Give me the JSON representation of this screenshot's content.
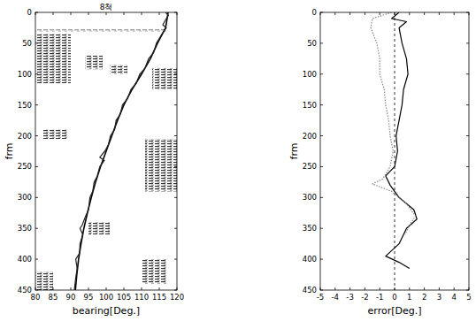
{
  "chart_data": [
    {
      "type": "line",
      "title": "8척",
      "xlabel": "bearing[Deg.]",
      "ylabel": "frm",
      "xlim": [
        80,
        120
      ],
      "xticks": [
        80,
        85,
        90,
        95,
        100,
        105,
        110,
        115,
        120
      ],
      "ylim": [
        450,
        0
      ],
      "yticks": [
        0,
        50,
        100,
        150,
        200,
        250,
        300,
        350,
        400,
        450
      ],
      "grid": false,
      "clutter": [
        [
          80,
          90,
          35,
          115
        ],
        [
          94,
          99,
          70,
          92
        ],
        [
          101,
          106,
          85,
          100
        ],
        [
          113,
          120,
          90,
          125
        ],
        [
          111,
          120,
          205,
          290
        ],
        [
          82,
          89,
          190,
          205
        ],
        [
          95,
          101,
          340,
          360
        ],
        [
          110,
          117,
          400,
          440
        ],
        [
          80,
          85,
          420,
          450
        ],
        [
          80,
          117,
          28,
          31
        ]
      ],
      "series": [
        {
          "color": "#000000",
          "line_style": "solid",
          "x": [
            117.5,
            116.8,
            114.5,
            112.5,
            110,
            107.3,
            105,
            103.2,
            101.6,
            100,
            98.4,
            97,
            95.8,
            94.7,
            93.7,
            92.9,
            92.2,
            91.7,
            91.3
          ],
          "values": [
            0,
            25,
            50,
            75,
            100,
            125,
            150,
            175,
            200,
            225,
            250,
            275,
            300,
            325,
            350,
            375,
            400,
            425,
            450
          ]
        },
        {
          "color": "#222222",
          "line_style": "solid",
          "x": [
            116.8,
            117.6,
            117,
            116,
            117,
            115.8,
            114.2,
            113.4,
            112,
            111,
            109.5,
            108.5,
            107,
            106,
            104.6,
            104,
            102.8,
            102.4,
            101.2,
            100.6,
            99.6,
            98.2,
            99.5,
            98.2,
            97.5,
            96.6,
            96.2,
            95.4,
            95,
            94.2,
            93.2,
            92.6,
            93.4,
            92.6,
            92.5,
            91.4,
            91.8,
            91.4,
            91
          ],
          "values": [
            0,
            5,
            10,
            20,
            25,
            35,
            50,
            65,
            75,
            90,
            100,
            115,
            125,
            140,
            150,
            165,
            175,
            190,
            200,
            215,
            225,
            235,
            240,
            250,
            265,
            275,
            290,
            300,
            320,
            330,
            345,
            350,
            360,
            375,
            390,
            400,
            415,
            430,
            450
          ]
        }
      ]
    },
    {
      "type": "line",
      "xlabel": "error[Deg.]",
      "ylabel": "frm",
      "xlim": [
        -5,
        5
      ],
      "xticks": [
        -5,
        -4,
        -3,
        -2,
        -1,
        0,
        1,
        2,
        3,
        4,
        5
      ],
      "ylim": [
        450,
        0
      ],
      "yticks": [
        0,
        50,
        100,
        150,
        200,
        250,
        300,
        350,
        400,
        450
      ],
      "grid": false,
      "ref_line": 0,
      "series": [
        {
          "color": "#000000",
          "line_style": "solid",
          "x": [
            0.3,
            -0.2,
            0.8,
            0.3,
            0.5,
            0.8,
            0.9,
            0.6,
            0.5,
            0.3,
            0.1,
            0.2,
            0,
            -0.6,
            -0.3,
            0.3,
            1.3,
            1.5,
            0.8,
            0.3,
            -0.6,
            0.3,
            1.0
          ],
          "values": [
            0,
            10,
            15,
            25,
            50,
            75,
            100,
            125,
            150,
            175,
            200,
            225,
            250,
            265,
            280,
            300,
            320,
            335,
            350,
            375,
            395,
            405,
            415
          ]
        },
        {
          "color": "#888888",
          "line_style": "dotted",
          "x": [
            -0.2,
            -1.5,
            -1.6,
            -1.2,
            -1.0,
            -1.0,
            -0.7,
            -0.6,
            -0.4,
            -0.3,
            -0.1,
            -0.3,
            -0.8,
            -1.5,
            -0.2,
            0.8,
            1.4,
            1.0,
            0.7
          ],
          "values": [
            0,
            10,
            25,
            50,
            75,
            100,
            125,
            150,
            175,
            200,
            225,
            250,
            270,
            278,
            290,
            310,
            330,
            345,
            360
          ]
        }
      ]
    }
  ]
}
